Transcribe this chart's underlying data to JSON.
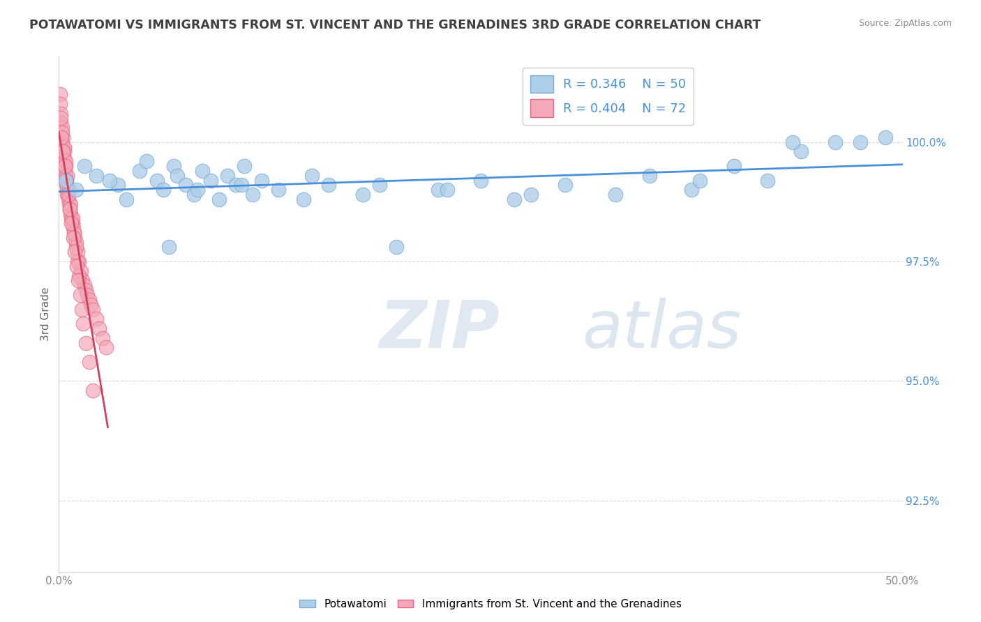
{
  "title": "POTAWATOMI VS IMMIGRANTS FROM ST. VINCENT AND THE GRENADINES 3RD GRADE CORRELATION CHART",
  "source": "Source: ZipAtlas.com",
  "ylabel_label": "3rd Grade",
  "xlim": [
    0.0,
    50.0
  ],
  "ylim": [
    91.0,
    101.8
  ],
  "yticks": [
    92.5,
    95.0,
    97.5,
    100.0
  ],
  "ytick_labels": [
    "92.5%",
    "95.0%",
    "97.5%",
    "100.0%"
  ],
  "legend_r_blue": "0.346",
  "legend_n_blue": "50",
  "legend_r_pink": "0.404",
  "legend_n_pink": "72",
  "blue_color": "#aecde8",
  "blue_edge": "#7aafd4",
  "pink_color": "#f4a8b8",
  "pink_edge": "#e06880",
  "trend_blue_color": "#4a90d9",
  "trend_pink_color": "#d04060",
  "background_color": "#ffffff",
  "grid_color": "#d8d8d8",
  "title_color": "#404040",
  "watermark_color_zip": "#c8d8e8",
  "watermark_color_atlas": "#b0c8e0",
  "source_color": "#888888",
  "ytick_color": "#4a90d9",
  "xtick_color": "#888888",
  "blue_x": [
    0.4,
    1.0,
    1.5,
    2.2,
    3.5,
    4.0,
    4.8,
    5.2,
    5.8,
    6.2,
    6.8,
    7.0,
    7.5,
    8.0,
    8.5,
    9.0,
    9.5,
    10.0,
    10.5,
    11.0,
    11.5,
    12.0,
    13.0,
    14.5,
    16.0,
    18.0,
    20.0,
    22.5,
    25.0,
    27.0,
    30.0,
    33.0,
    35.0,
    37.5,
    40.0,
    42.0,
    44.0,
    46.0,
    47.5,
    49.0,
    3.0,
    6.5,
    8.2,
    10.8,
    15.0,
    19.0,
    23.0,
    28.0,
    38.0,
    43.5
  ],
  "blue_y": [
    99.2,
    99.0,
    99.5,
    99.3,
    99.1,
    98.8,
    99.4,
    99.6,
    99.2,
    99.0,
    99.5,
    99.3,
    99.1,
    98.9,
    99.4,
    99.2,
    98.8,
    99.3,
    99.1,
    99.5,
    98.9,
    99.2,
    99.0,
    98.8,
    99.1,
    98.9,
    97.8,
    99.0,
    99.2,
    98.8,
    99.1,
    98.9,
    99.3,
    99.0,
    99.5,
    99.2,
    99.8,
    100.0,
    100.0,
    100.1,
    99.2,
    97.8,
    99.0,
    99.1,
    99.3,
    99.1,
    99.0,
    98.9,
    99.2,
    100.0
  ],
  "pink_x": [
    0.05,
    0.08,
    0.1,
    0.12,
    0.15,
    0.18,
    0.2,
    0.22,
    0.25,
    0.28,
    0.3,
    0.32,
    0.35,
    0.38,
    0.4,
    0.42,
    0.45,
    0.48,
    0.5,
    0.55,
    0.6,
    0.65,
    0.7,
    0.75,
    0.8,
    0.85,
    0.9,
    0.95,
    1.0,
    1.1,
    1.2,
    1.3,
    1.4,
    1.5,
    1.6,
    1.7,
    1.8,
    1.9,
    2.0,
    2.2,
    2.4,
    2.6,
    2.8,
    0.1,
    0.2,
    0.3,
    0.4,
    0.5,
    0.6,
    0.7,
    0.8,
    0.9,
    1.0,
    1.1,
    1.2,
    0.15,
    0.25,
    0.35,
    0.45,
    0.55,
    0.65,
    0.75,
    0.85,
    0.95,
    1.05,
    1.15,
    1.25,
    1.35,
    1.45,
    1.6,
    1.8,
    2.0
  ],
  "pink_y": [
    101.0,
    100.8,
    100.6,
    100.4,
    100.2,
    100.0,
    100.3,
    100.1,
    99.9,
    99.7,
    99.8,
    99.6,
    99.4,
    99.5,
    99.3,
    99.2,
    99.1,
    99.0,
    98.9,
    98.8,
    98.7,
    98.6,
    98.5,
    98.4,
    98.3,
    98.2,
    98.1,
    98.0,
    97.9,
    97.7,
    97.5,
    97.3,
    97.1,
    97.0,
    96.9,
    96.8,
    96.7,
    96.6,
    96.5,
    96.3,
    96.1,
    95.9,
    95.7,
    100.5,
    100.2,
    99.9,
    99.6,
    99.3,
    99.0,
    98.7,
    98.4,
    98.1,
    97.8,
    97.5,
    97.2,
    100.1,
    99.8,
    99.5,
    99.2,
    98.9,
    98.6,
    98.3,
    98.0,
    97.7,
    97.4,
    97.1,
    96.8,
    96.5,
    96.2,
    95.8,
    95.4,
    94.8
  ]
}
